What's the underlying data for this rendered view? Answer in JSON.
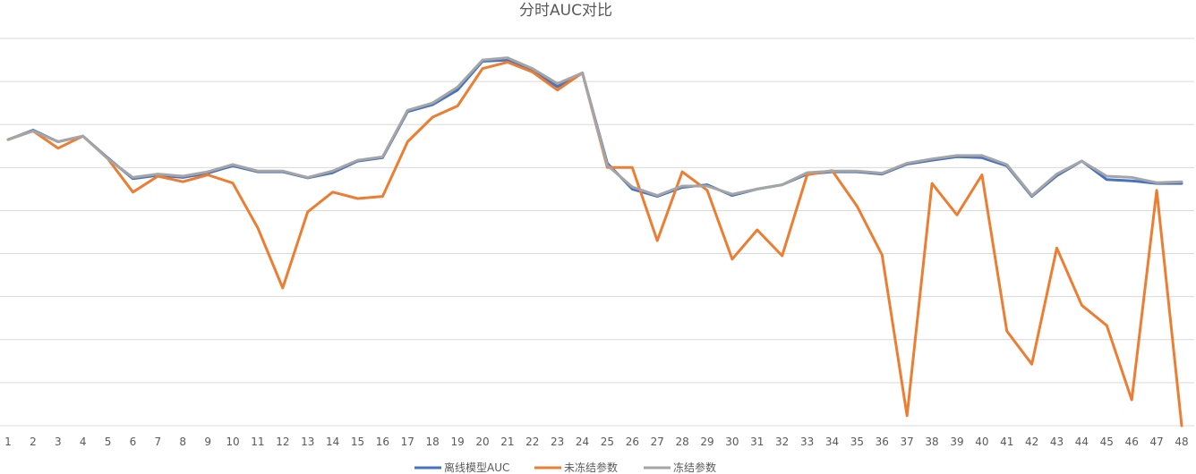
{
  "chart_data": {
    "type": "line",
    "title": "分时AUC对比",
    "xlabel": "",
    "ylabel": "",
    "categories": [
      "1",
      "2",
      "3",
      "4",
      "5",
      "6",
      "7",
      "8",
      "9",
      "10",
      "11",
      "12",
      "13",
      "14",
      "15",
      "16",
      "17",
      "18",
      "19",
      "20",
      "21",
      "22",
      "23",
      "24",
      "25",
      "26",
      "27",
      "28",
      "29",
      "30",
      "31",
      "32",
      "33",
      "34",
      "35",
      "36",
      "37",
      "38",
      "39",
      "40",
      "41",
      "42",
      "43",
      "44",
      "45",
      "46",
      "47",
      "48"
    ],
    "ylim": [
      0,
      9
    ],
    "gridlines": 10,
    "legend_position": "bottom",
    "series": [
      {
        "name": "离线模型AUC",
        "color": "#4472c4",
        "values": [
          6.65,
          6.87,
          6.6,
          6.73,
          6.22,
          5.74,
          5.82,
          5.77,
          5.87,
          6.04,
          5.9,
          5.9,
          5.76,
          5.88,
          6.15,
          6.23,
          7.3,
          7.46,
          7.8,
          8.47,
          8.5,
          8.25,
          7.88,
          8.2,
          6.1,
          5.5,
          5.33,
          5.54,
          5.6,
          5.35,
          5.5,
          5.6,
          5.85,
          5.9,
          5.9,
          5.85,
          6.08,
          6.17,
          6.25,
          6.23,
          6.04,
          5.33,
          5.81,
          6.15,
          5.72,
          5.69,
          5.63,
          5.63
        ]
      },
      {
        "name": "未冻结参数",
        "color": "#ed7d31",
        "values": [
          6.65,
          6.85,
          6.45,
          6.73,
          6.2,
          5.43,
          5.8,
          5.67,
          5.83,
          5.64,
          4.6,
          3.2,
          4.97,
          5.43,
          5.28,
          5.33,
          6.6,
          7.17,
          7.43,
          8.3,
          8.45,
          8.22,
          7.8,
          8.2,
          6.0,
          6.0,
          4.3,
          5.9,
          5.47,
          3.87,
          4.55,
          3.95,
          5.83,
          5.93,
          5.1,
          3.97,
          0.23,
          5.63,
          4.9,
          5.83,
          2.2,
          1.43,
          4.13,
          2.8,
          2.33,
          0.6,
          5.47,
          0.0
        ]
      },
      {
        "name": "冻结参数",
        "color": "#a5a5a5",
        "values": [
          6.65,
          6.85,
          6.6,
          6.73,
          6.2,
          5.77,
          5.85,
          5.8,
          5.9,
          6.07,
          5.92,
          5.92,
          5.77,
          5.92,
          6.17,
          6.25,
          7.33,
          7.5,
          7.87,
          8.5,
          8.55,
          8.3,
          7.95,
          8.2,
          6.05,
          5.55,
          5.35,
          5.57,
          5.57,
          5.38,
          5.5,
          5.6,
          5.88,
          5.92,
          5.92,
          5.87,
          6.1,
          6.2,
          6.28,
          6.28,
          6.07,
          5.35,
          5.85,
          6.15,
          5.8,
          5.77,
          5.65,
          5.67
        ]
      }
    ]
  }
}
